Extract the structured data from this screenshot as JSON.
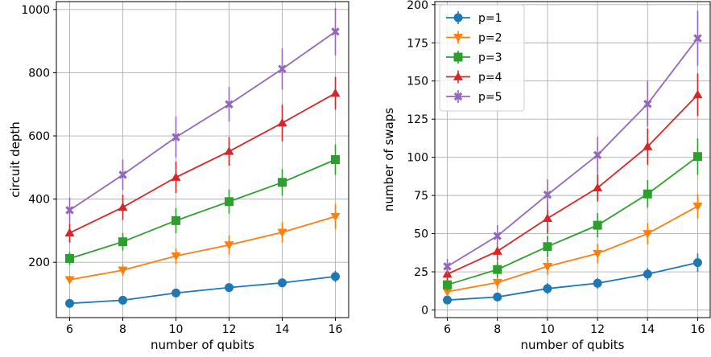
{
  "colors": {
    "p1": "#1f77b4",
    "p2": "#ff7f0e",
    "p3": "#2ca02c",
    "p4": "#d62728",
    "p5": "#9467bd",
    "grid": "#b0b0b0"
  },
  "chart_data": [
    {
      "type": "line",
      "title": "",
      "xlabel": "number of qubits",
      "ylabel": "circuit depth",
      "x": [
        6,
        8,
        10,
        12,
        14,
        16
      ],
      "xlim": [
        5.5,
        16.5
      ],
      "ylim": [
        25,
        1025
      ],
      "xticks": [
        6,
        8,
        10,
        12,
        14,
        16
      ],
      "yticks": [
        200,
        400,
        600,
        800,
        1000
      ],
      "grid": true,
      "legend": "none",
      "series": [
        {
          "name": "p=1",
          "marker": "circle",
          "values": [
            70,
            80,
            103,
            120,
            135,
            155
          ],
          "err": [
            6,
            8,
            10,
            12,
            14,
            18
          ]
        },
        {
          "name": "p=2",
          "marker": "triangle-down",
          "values": [
            145,
            175,
            220,
            255,
            295,
            345
          ],
          "err": [
            12,
            18,
            25,
            30,
            32,
            40
          ]
        },
        {
          "name": "p=3",
          "marker": "square",
          "values": [
            212,
            265,
            332,
            392,
            453,
            525
          ],
          "err": [
            20,
            28,
            40,
            38,
            42,
            48
          ]
        },
        {
          "name": "p=4",
          "marker": "triangle-up",
          "values": [
            293,
            374,
            469,
            551,
            641,
            735
          ],
          "err": [
            30,
            40,
            50,
            45,
            58,
            52
          ]
        },
        {
          "name": "p=5",
          "marker": "x-filled",
          "values": [
            365,
            477,
            596,
            700,
            812,
            930
          ],
          "err": [
            40,
            48,
            65,
            55,
            65,
            75
          ]
        }
      ]
    },
    {
      "type": "line",
      "title": "",
      "xlabel": "number of qubits",
      "ylabel": "number of swaps",
      "x": [
        6,
        8,
        10,
        12,
        14,
        16
      ],
      "xlim": [
        5.5,
        16.5
      ],
      "ylim": [
        -5,
        202
      ],
      "xticks": [
        6,
        8,
        10,
        12,
        14,
        16
      ],
      "yticks": [
        0,
        25,
        50,
        75,
        100,
        125,
        150,
        175,
        200
      ],
      "grid": true,
      "legend": "upper-left",
      "series": [
        {
          "name": "p=1",
          "marker": "circle",
          "values": [
            6.5,
            8.5,
            14,
            17.5,
            23.5,
            31
          ],
          "err": [
            2,
            2.5,
            3.5,
            3.5,
            4,
            6
          ]
        },
        {
          "name": "p=2",
          "marker": "triangle-down",
          "values": [
            12,
            18,
            28.5,
            37,
            50,
            68
          ],
          "err": [
            3,
            4,
            5.5,
            6.5,
            7,
            8
          ]
        },
        {
          "name": "p=3",
          "marker": "square",
          "values": [
            16.5,
            26.5,
            41.5,
            55.5,
            76,
            100.5
          ],
          "err": [
            4,
            5.5,
            7,
            8,
            9,
            12
          ]
        },
        {
          "name": "p=4",
          "marker": "triangle-up",
          "values": [
            23.5,
            38.5,
            60,
            80,
            107,
            141
          ],
          "err": [
            4,
            6,
            10,
            9,
            12,
            14
          ]
        },
        {
          "name": "p=5",
          "marker": "x-filled",
          "values": [
            28.5,
            48.5,
            75.5,
            101.5,
            135,
            178
          ],
          "err": [
            5,
            7,
            10,
            12,
            15,
            18
          ]
        }
      ]
    }
  ]
}
